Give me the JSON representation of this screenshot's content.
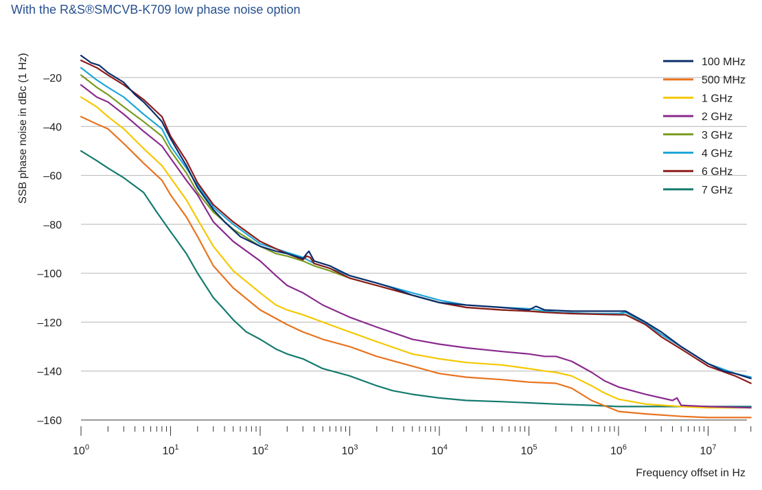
{
  "chart_data": {
    "type": "line",
    "title": "With the R&S®SMCVB-K709 low phase noise option",
    "xlabel": "Frequency offset in Hz",
    "ylabel": "SSB phase noise in dBc (1 Hz)",
    "xscale": "log",
    "xlim": [
      1,
      30000000
    ],
    "ylim": [
      -160,
      -10
    ],
    "x_ticks": [
      {
        "value": 1,
        "base": "10",
        "exp": "0"
      },
      {
        "value": 10,
        "base": "10",
        "exp": "1"
      },
      {
        "value": 100,
        "base": "10",
        "exp": "2"
      },
      {
        "value": 1000,
        "base": "10",
        "exp": "3"
      },
      {
        "value": 10000,
        "base": "10",
        "exp": "4"
      },
      {
        "value": 100000,
        "base": "10",
        "exp": "5"
      },
      {
        "value": 1000000,
        "base": "10",
        "exp": "6"
      },
      {
        "value": 10000000,
        "base": "10",
        "exp": "7"
      }
    ],
    "y_ticks": [
      {
        "value": -20,
        "label": "–20"
      },
      {
        "value": -40,
        "label": "–40"
      },
      {
        "value": -60,
        "label": "–60"
      },
      {
        "value": -80,
        "label": "–80"
      },
      {
        "value": -100,
        "label": "–100"
      },
      {
        "value": -120,
        "label": "–120"
      },
      {
        "value": -140,
        "label": "–140"
      },
      {
        "value": -160,
        "label": "–160"
      }
    ],
    "grid": "horizontal",
    "legend_position": "top-right",
    "series": [
      {
        "name": "100 MHz",
        "color": "#0b2d6b",
        "x": [
          1,
          1.3,
          1.6,
          2,
          3,
          4,
          5,
          6,
          8,
          10,
          12,
          15,
          20,
          30,
          40,
          60,
          100,
          150,
          200,
          300,
          330,
          350,
          400,
          600,
          1000,
          2000,
          3000,
          5000,
          10000,
          20000,
          50000,
          100000,
          120000,
          150000,
          300000,
          1000000,
          1200000,
          2000000,
          3000000,
          5000000,
          10000000,
          15000000,
          20000000,
          30000000
        ],
        "y": [
          -11,
          -14,
          -15,
          -18,
          -22,
          -27,
          -30,
          -33,
          -38,
          -45,
          -50,
          -56,
          -65,
          -74,
          -79,
          -85,
          -89,
          -91,
          -92,
          -94,
          -92,
          -91,
          -95,
          -97,
          -101,
          -104,
          -106,
          -109,
          -112,
          -113,
          -114,
          -115,
          -113.5,
          -115,
          -115.5,
          -115.5,
          -115.5,
          -120,
          -124,
          -130,
          -137,
          -140,
          -141,
          -143
        ]
      },
      {
        "name": "500 MHz",
        "color": "#e8731e",
        "x": [
          1,
          1.5,
          2,
          3,
          5,
          8,
          10,
          15,
          20,
          30,
          50,
          100,
          200,
          300,
          500,
          1000,
          2000,
          5000,
          10000,
          20000,
          50000,
          100000,
          200000,
          300000,
          500000,
          1000000,
          2000000,
          5000000,
          10000000,
          30000000
        ],
        "y": [
          -36,
          -39,
          -41,
          -47,
          -55,
          -62,
          -68,
          -77,
          -85,
          -97,
          -106,
          -115,
          -121,
          -124,
          -127,
          -130,
          -134,
          -138,
          -141,
          -142.5,
          -143.5,
          -144.5,
          -145,
          -147,
          -152,
          -156.5,
          -157.5,
          -158.5,
          -159,
          -159
        ]
      },
      {
        "name": "1 GHz",
        "color": "#f5c800",
        "x": [
          1,
          1.5,
          2,
          3,
          5,
          8,
          10,
          15,
          20,
          30,
          50,
          100,
          150,
          200,
          300,
          500,
          1000,
          2000,
          5000,
          10000,
          20000,
          50000,
          100000,
          150000,
          200000,
          300000,
          500000,
          700000,
          1000000,
          2000000,
          5000000,
          10000000,
          30000000
        ],
        "y": [
          -28,
          -32,
          -36,
          -41,
          -49,
          -56,
          -61,
          -70,
          -78,
          -89,
          -99,
          -108,
          -113,
          -115,
          -117,
          -120,
          -124,
          -128,
          -133,
          -135,
          -136.5,
          -137.5,
          -139,
          -140,
          -140.5,
          -142,
          -146,
          -149,
          -151.5,
          -153.5,
          -154.5,
          -155,
          -155
        ]
      },
      {
        "name": "2 GHz",
        "color": "#8a2a8e",
        "x": [
          1,
          1.5,
          2,
          3,
          5,
          8,
          10,
          15,
          20,
          30,
          50,
          100,
          150,
          200,
          300,
          500,
          1000,
          2000,
          5000,
          10000,
          20000,
          50000,
          100000,
          150000,
          200000,
          300000,
          500000,
          700000,
          1000000,
          2000000,
          4000000,
          4500000,
          5000000,
          10000000,
          30000000
        ],
        "y": [
          -23,
          -28,
          -30,
          -35,
          -42,
          -48,
          -53,
          -62,
          -68,
          -79,
          -87,
          -95,
          -101,
          -105,
          -108,
          -113,
          -118,
          -122,
          -127,
          -129,
          -130.5,
          -132,
          -133,
          -134,
          -134,
          -136,
          -140.5,
          -144,
          -146.5,
          -149.5,
          -152,
          -151,
          -154,
          -154.5,
          -155
        ]
      },
      {
        "name": "3 GHz",
        "color": "#7a9a1f",
        "x": [
          1,
          1.5,
          2,
          3,
          5,
          8,
          10,
          15,
          20,
          30,
          50,
          100,
          150,
          200,
          300,
          400,
          600,
          1000,
          2000,
          5000,
          10000,
          20000,
          50000,
          100000,
          200000,
          500000,
          1000000,
          1200000,
          2000000,
          3000000,
          5000000,
          10000000,
          20000000,
          30000000
        ],
        "y": [
          -19,
          -24,
          -27,
          -32,
          -38,
          -44,
          -50,
          -59,
          -67,
          -75,
          -82,
          -89,
          -92,
          -93,
          -95,
          -97,
          -99,
          -102,
          -105,
          -109,
          -112,
          -114,
          -115,
          -115.5,
          -116,
          -116.5,
          -116.5,
          -117,
          -120.5,
          -125,
          -130,
          -137,
          -141,
          -142.5
        ]
      },
      {
        "name": "4 GHz",
        "color": "#1ea6d8",
        "x": [
          1,
          1.5,
          2,
          3,
          5,
          8,
          10,
          15,
          20,
          30,
          50,
          100,
          150,
          200,
          300,
          400,
          600,
          1000,
          2000,
          5000,
          10000,
          20000,
          50000,
          100000,
          200000,
          500000,
          1000000,
          1200000,
          2000000,
          3000000,
          5000000,
          10000000,
          20000000,
          30000000
        ],
        "y": [
          -16,
          -21,
          -24,
          -28,
          -35,
          -41,
          -48,
          -57,
          -64,
          -73,
          -80,
          -88,
          -90,
          -91.5,
          -93.5,
          -96,
          -98,
          -101,
          -104,
          -108,
          -111,
          -113,
          -114,
          -114.5,
          -116,
          -116.5,
          -116.5,
          -116,
          -120.5,
          -125,
          -130,
          -137,
          -141,
          -142.5
        ]
      },
      {
        "name": "6 GHz",
        "color": "#8b1a1a",
        "x": [
          1,
          1.5,
          2,
          3,
          5,
          8,
          10,
          15,
          20,
          30,
          50,
          100,
          150,
          200,
          300,
          330,
          360,
          400,
          600,
          1000,
          2000,
          5000,
          10000,
          20000,
          50000,
          100000,
          150000,
          300000,
          1000000,
          1200000,
          2000000,
          3000000,
          5000000,
          10000000,
          20000000,
          30000000
        ],
        "y": [
          -13,
          -16,
          -19,
          -23,
          -29,
          -36,
          -44,
          -54,
          -63,
          -72,
          -79,
          -87,
          -90,
          -92,
          -94.5,
          -93,
          -93.5,
          -96,
          -98,
          -102,
          -105,
          -109,
          -112,
          -114,
          -115,
          -115.5,
          -116,
          -116.5,
          -117,
          -117,
          -121,
          -126,
          -131,
          -138,
          -142,
          -145
        ]
      },
      {
        "name": "7 GHz",
        "color": "#137a6e",
        "x": [
          1,
          1.5,
          2,
          3,
          5,
          7,
          10,
          12,
          15,
          20,
          30,
          40,
          50,
          70,
          100,
          150,
          200,
          300,
          500,
          1000,
          2000,
          3000,
          5000,
          10000,
          20000,
          50000,
          100000,
          200000,
          500000,
          1000000,
          2000000,
          5000000,
          10000000,
          30000000
        ],
        "y": [
          -50,
          -54,
          -57,
          -61,
          -67,
          -75,
          -83,
          -87,
          -92,
          -100,
          -110,
          -115,
          -119,
          -124,
          -127,
          -131,
          -133,
          -135,
          -139,
          -142,
          -146,
          -148,
          -149.5,
          -151,
          -152,
          -152.5,
          -153,
          -153.5,
          -154,
          -154.5,
          -154.5,
          -154.5,
          -154.5,
          -154.5
        ]
      }
    ]
  }
}
